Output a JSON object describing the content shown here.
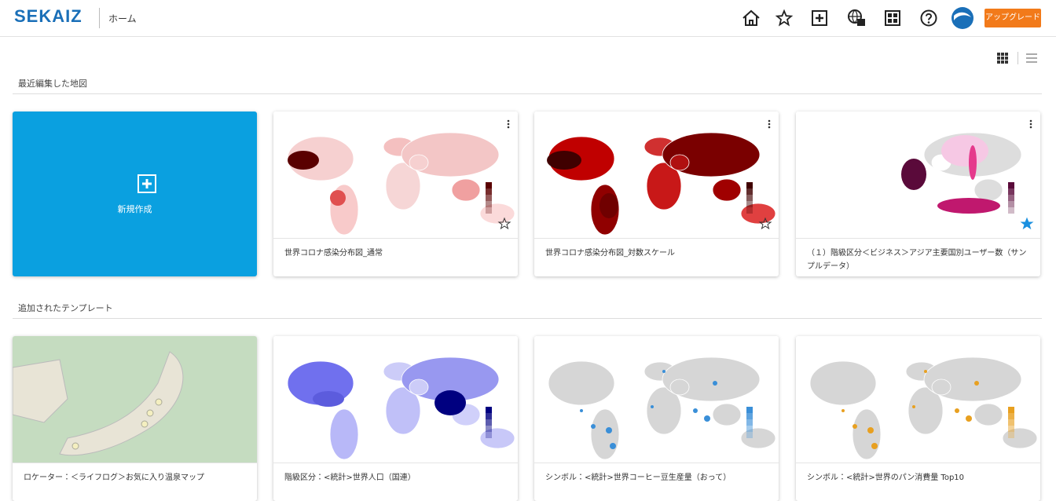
{
  "header": {
    "logo": "SEKAIZ",
    "page": "ホーム",
    "upgrade": "アップグレード"
  },
  "recent": {
    "title": "最近編集した地図",
    "new_map": "新規作成",
    "cards": [
      {
        "title": "世界コロナ感染分布図_通常"
      },
      {
        "title": "世界コロナ感染分布図_対数スケール"
      },
      {
        "title": "（１）階級区分＜ビジネス＞アジア主要国別ユーザー数（サンプルデータ）"
      }
    ]
  },
  "templates": {
    "title": "追加されたテンプレート",
    "cards": [
      {
        "title": "ロケーター：＜ライフログ＞お気に入り温泉マップ"
      },
      {
        "title": "階級区分：<統計>世界人口（国連）"
      },
      {
        "title": "シンボル：<統計>世界コーヒー豆生産量（おって）"
      },
      {
        "title": "シンボル：<統計>世界のパン消費量 Top10"
      }
    ]
  }
}
